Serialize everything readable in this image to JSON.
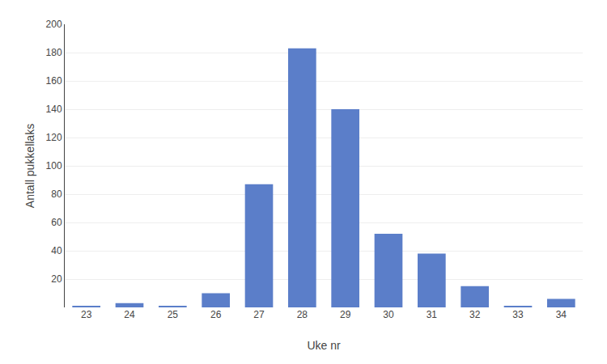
{
  "chart_data": {
    "type": "bar",
    "xlabel": "Uke nr",
    "ylabel": "Antall pukkellaks",
    "categories": [
      "23",
      "24",
      "25",
      "26",
      "27",
      "28",
      "29",
      "30",
      "31",
      "32",
      "33",
      "34"
    ],
    "values": [
      1,
      3,
      1,
      10,
      87,
      183,
      140,
      52,
      38,
      15,
      1,
      6
    ],
    "color": "#5B7EC9",
    "ylim": [
      0,
      200
    ],
    "yticks": [
      20,
      40,
      60,
      80,
      100,
      120,
      140,
      160,
      180,
      200
    ],
    "grid": true
  }
}
